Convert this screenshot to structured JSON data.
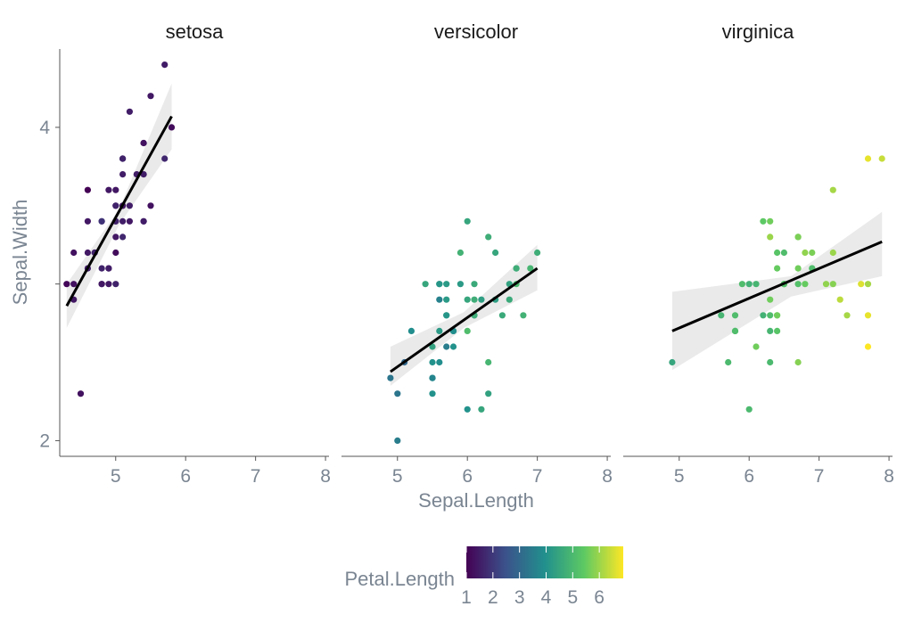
{
  "chart_data": {
    "type": "scatter",
    "facet_var": "Species",
    "x_label": "Sepal.Length",
    "y_label": "Sepal.Width",
    "color_label": "Petal.Length",
    "xlim": [
      4.2,
      8.05
    ],
    "ylim": [
      1.9,
      4.5
    ],
    "x_ticks": [
      5,
      6,
      7,
      8
    ],
    "y_ticks": [
      2,
      3,
      4
    ],
    "y_tick_labels": [
      "2",
      "",
      "4"
    ],
    "color_ticks": [
      1,
      2,
      3,
      4,
      5,
      6
    ],
    "color_range": [
      1,
      6.9
    ],
    "colors": [
      "#440154",
      "#3b528b",
      "#21908d",
      "#5dc963",
      "#fde725"
    ],
    "panels": [
      {
        "name": "setosa",
        "fit": {
          "x": [
            4.3,
            5.8
          ],
          "y": [
            2.86,
            4.07
          ]
        },
        "band": {
          "x": [
            4.3,
            5.05,
            5.8
          ],
          "lower": [
            2.72,
            3.38,
            3.86
          ],
          "upper": [
            3.0,
            3.48,
            4.28
          ]
        },
        "points": [
          [
            5.1,
            3.5,
            1.4
          ],
          [
            4.9,
            3.0,
            1.4
          ],
          [
            4.7,
            3.2,
            1.3
          ],
          [
            4.6,
            3.1,
            1.5
          ],
          [
            5.0,
            3.6,
            1.4
          ],
          [
            5.4,
            3.9,
            1.7
          ],
          [
            4.6,
            3.4,
            1.4
          ],
          [
            5.0,
            3.4,
            1.5
          ],
          [
            4.4,
            2.9,
            1.4
          ],
          [
            4.9,
            3.1,
            1.5
          ],
          [
            5.4,
            3.7,
            1.5
          ],
          [
            4.8,
            3.4,
            1.6
          ],
          [
            4.8,
            3.0,
            1.4
          ],
          [
            4.3,
            3.0,
            1.1
          ],
          [
            5.8,
            4.0,
            1.2
          ],
          [
            5.7,
            4.4,
            1.5
          ],
          [
            5.4,
            3.9,
            1.3
          ],
          [
            5.1,
            3.5,
            1.4
          ],
          [
            5.7,
            3.8,
            1.7
          ],
          [
            5.1,
            3.8,
            1.5
          ],
          [
            5.4,
            3.4,
            1.7
          ],
          [
            5.1,
            3.7,
            1.5
          ],
          [
            4.6,
            3.6,
            1.0
          ],
          [
            5.1,
            3.3,
            1.7
          ],
          [
            4.8,
            3.4,
            1.9
          ],
          [
            5.0,
            3.0,
            1.6
          ],
          [
            5.0,
            3.4,
            1.6
          ],
          [
            5.2,
            3.5,
            1.5
          ],
          [
            5.2,
            3.4,
            1.4
          ],
          [
            4.7,
            3.2,
            1.6
          ],
          [
            4.8,
            3.1,
            1.6
          ],
          [
            5.4,
            3.4,
            1.5
          ],
          [
            5.2,
            4.1,
            1.5
          ],
          [
            5.5,
            4.2,
            1.4
          ],
          [
            4.9,
            3.1,
            1.5
          ],
          [
            5.0,
            3.2,
            1.2
          ],
          [
            5.5,
            3.5,
            1.3
          ],
          [
            4.9,
            3.6,
            1.4
          ],
          [
            4.4,
            3.0,
            1.3
          ],
          [
            5.1,
            3.4,
            1.5
          ],
          [
            5.0,
            3.5,
            1.3
          ],
          [
            4.5,
            2.3,
            1.3
          ],
          [
            4.4,
            3.2,
            1.3
          ],
          [
            5.0,
            3.5,
            1.6
          ],
          [
            5.1,
            3.8,
            1.9
          ],
          [
            4.8,
            3.0,
            1.4
          ],
          [
            5.1,
            3.8,
            1.6
          ],
          [
            4.6,
            3.2,
            1.4
          ],
          [
            5.3,
            3.7,
            1.5
          ],
          [
            5.0,
            3.3,
            1.4
          ]
        ]
      },
      {
        "name": "versicolor",
        "fit": {
          "x": [
            4.9,
            7.0
          ],
          "y": [
            2.44,
            3.1
          ]
        },
        "band": {
          "x": [
            4.9,
            5.95,
            7.0
          ],
          "lower": [
            2.35,
            2.72,
            2.96
          ],
          "upper": [
            2.6,
            2.82,
            3.25
          ]
        },
        "points": [
          [
            7.0,
            3.2,
            4.7
          ],
          [
            6.4,
            3.2,
            4.5
          ],
          [
            6.9,
            3.1,
            4.9
          ],
          [
            5.5,
            2.3,
            4.0
          ],
          [
            6.5,
            2.8,
            4.6
          ],
          [
            5.7,
            2.8,
            4.5
          ],
          [
            6.3,
            3.3,
            4.7
          ],
          [
            4.9,
            2.4,
            3.3
          ],
          [
            6.6,
            2.9,
            4.6
          ],
          [
            5.2,
            2.7,
            3.9
          ],
          [
            5.0,
            2.0,
            3.5
          ],
          [
            5.9,
            3.0,
            4.2
          ],
          [
            6.0,
            2.2,
            4.0
          ],
          [
            6.1,
            2.9,
            4.7
          ],
          [
            5.6,
            2.9,
            3.6
          ],
          [
            6.7,
            3.1,
            4.4
          ],
          [
            5.6,
            3.0,
            4.5
          ],
          [
            5.8,
            2.7,
            4.1
          ],
          [
            6.2,
            2.2,
            4.5
          ],
          [
            5.6,
            2.5,
            3.9
          ],
          [
            5.9,
            3.2,
            4.8
          ],
          [
            6.1,
            2.8,
            4.0
          ],
          [
            6.3,
            2.5,
            4.9
          ],
          [
            6.1,
            2.8,
            4.7
          ],
          [
            6.4,
            2.9,
            4.3
          ],
          [
            6.6,
            3.0,
            4.4
          ],
          [
            6.8,
            2.8,
            4.8
          ],
          [
            6.7,
            3.0,
            5.0
          ],
          [
            6.0,
            2.9,
            4.5
          ],
          [
            5.7,
            2.6,
            3.5
          ],
          [
            5.5,
            2.4,
            3.8
          ],
          [
            5.5,
            2.4,
            3.7
          ],
          [
            5.8,
            2.7,
            3.9
          ],
          [
            6.0,
            2.7,
            5.1
          ],
          [
            5.4,
            3.0,
            4.5
          ],
          [
            6.0,
            3.4,
            4.5
          ],
          [
            6.7,
            3.1,
            4.7
          ],
          [
            6.3,
            2.3,
            4.4
          ],
          [
            5.6,
            3.0,
            4.1
          ],
          [
            5.5,
            2.5,
            4.0
          ],
          [
            5.5,
            2.6,
            4.4
          ],
          [
            6.1,
            3.0,
            4.6
          ],
          [
            5.8,
            2.6,
            4.0
          ],
          [
            5.0,
            2.3,
            3.3
          ],
          [
            5.6,
            2.7,
            4.2
          ],
          [
            5.7,
            3.0,
            4.2
          ],
          [
            5.7,
            2.9,
            4.2
          ],
          [
            6.2,
            2.9,
            4.3
          ],
          [
            5.1,
            2.5,
            3.0
          ],
          [
            5.7,
            2.8,
            4.1
          ]
        ]
      },
      {
        "name": "virginica",
        "fit": {
          "x": [
            4.9,
            7.9
          ],
          "y": [
            2.7,
            3.27
          ]
        },
        "band": {
          "x": [
            4.9,
            6.6,
            7.9
          ],
          "lower": [
            2.45,
            2.92,
            3.05
          ],
          "upper": [
            2.95,
            3.05,
            3.46
          ]
        },
        "points": [
          [
            6.3,
            3.3,
            6.0
          ],
          [
            5.8,
            2.7,
            5.1
          ],
          [
            7.1,
            3.0,
            5.9
          ],
          [
            6.3,
            2.9,
            5.6
          ],
          [
            6.5,
            3.0,
            5.8
          ],
          [
            7.6,
            3.0,
            6.6
          ],
          [
            4.9,
            2.5,
            4.5
          ],
          [
            7.3,
            2.9,
            6.3
          ],
          [
            6.7,
            2.5,
            5.8
          ],
          [
            7.2,
            3.6,
            6.1
          ],
          [
            6.5,
            3.2,
            5.1
          ],
          [
            6.4,
            2.7,
            5.3
          ],
          [
            6.8,
            3.0,
            5.5
          ],
          [
            5.7,
            2.5,
            5.0
          ],
          [
            5.8,
            2.8,
            5.1
          ],
          [
            6.4,
            3.2,
            5.3
          ],
          [
            6.5,
            3.0,
            5.5
          ],
          [
            7.7,
            3.8,
            6.7
          ],
          [
            7.7,
            2.6,
            6.9
          ],
          [
            6.0,
            2.2,
            5.0
          ],
          [
            6.9,
            3.2,
            5.7
          ],
          [
            5.6,
            2.8,
            4.9
          ],
          [
            7.7,
            2.8,
            6.7
          ],
          [
            6.3,
            2.7,
            4.9
          ],
          [
            6.7,
            3.3,
            5.7
          ],
          [
            7.2,
            3.2,
            6.0
          ],
          [
            6.2,
            2.8,
            4.8
          ],
          [
            6.1,
            3.0,
            4.9
          ],
          [
            6.4,
            2.8,
            5.6
          ],
          [
            7.2,
            3.0,
            5.8
          ],
          [
            7.4,
            2.8,
            6.1
          ],
          [
            7.9,
            3.8,
            6.4
          ],
          [
            6.4,
            2.8,
            5.6
          ],
          [
            6.3,
            2.8,
            5.1
          ],
          [
            6.1,
            2.6,
            5.6
          ],
          [
            7.7,
            3.0,
            6.1
          ],
          [
            6.3,
            3.4,
            5.6
          ],
          [
            6.4,
            3.1,
            5.5
          ],
          [
            6.0,
            3.0,
            4.8
          ],
          [
            6.9,
            3.1,
            5.4
          ],
          [
            6.7,
            3.1,
            5.6
          ],
          [
            6.9,
            3.1,
            5.1
          ],
          [
            5.8,
            2.7,
            5.1
          ],
          [
            6.8,
            3.2,
            5.9
          ],
          [
            6.7,
            3.3,
            5.7
          ],
          [
            6.7,
            3.0,
            5.2
          ],
          [
            6.3,
            2.5,
            5.0
          ],
          [
            6.5,
            3.0,
            5.2
          ],
          [
            6.2,
            3.4,
            5.4
          ],
          [
            5.9,
            3.0,
            5.1
          ]
        ]
      }
    ]
  }
}
